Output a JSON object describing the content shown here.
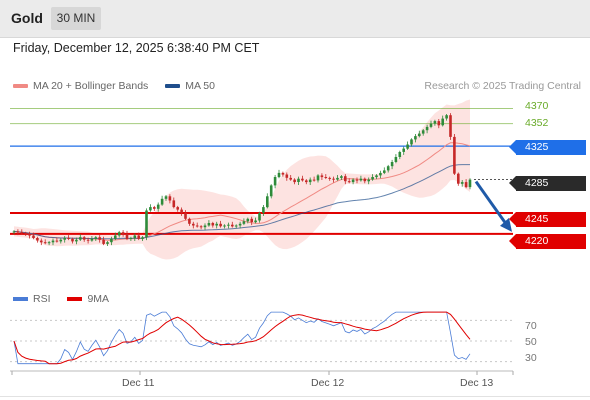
{
  "header": {
    "title": "Gold",
    "timeframe": "30 MIN",
    "datetime": "Friday, December 12, 2025 6:38:40 PM CET"
  },
  "legend": {
    "ma20_label": "MA 20 + Bollinger Bands",
    "ma50_label": "MA 50",
    "ma20_color": "#f08a84",
    "ma50_color": "#1f4e8c",
    "research": "Research © 2025 Trading Central"
  },
  "rsi_legend": {
    "rsi_label": "RSI",
    "ma_label": "9MA",
    "rsi_color": "#4a7cd6",
    "ma_color": "#e00000"
  },
  "levels": {
    "r2": "4370",
    "r1": "4352",
    "pivot": "4325",
    "current": "4285",
    "s1": "4245",
    "s2": "4220"
  },
  "colors": {
    "resistance": "#6aab2a",
    "pivot": "#1f6fe8",
    "current": "#2a2a2a",
    "support": "#e00000",
    "arrow": "#1f5aa8"
  },
  "rsi_ticks": [
    "70",
    "50",
    "30"
  ],
  "date_ticks": [
    "Dec 11",
    "Dec 12",
    "Dec 13"
  ],
  "chart_data": {
    "type": "candlestick",
    "y_range": [
      4160,
      4385
    ],
    "close": [
      4223,
      4222,
      4221,
      4220,
      4218,
      4215,
      4212,
      4210,
      4209,
      4210,
      4212,
      4211,
      4213,
      4215,
      4214,
      4211,
      4213,
      4216,
      4213,
      4212,
      4214,
      4216,
      4213,
      4208,
      4210,
      4214,
      4218,
      4222,
      4220,
      4214,
      4215,
      4218,
      4214,
      4216,
      4248,
      4252,
      4250,
      4255,
      4262,
      4265,
      4260,
      4252,
      4249,
      4245,
      4238,
      4232,
      4230,
      4229,
      4228,
      4230,
      4233,
      4230,
      4232,
      4229,
      4230,
      4231,
      4229,
      4230,
      4232,
      4235,
      4238,
      4234,
      4236,
      4245,
      4252,
      4265,
      4278,
      4288,
      4293,
      4291,
      4287,
      4285,
      4282,
      4286,
      4284,
      4282,
      4285,
      4284,
      4290,
      4288,
      4287,
      4286,
      4285,
      4287,
      4289,
      4283,
      4282,
      4285,
      4284,
      4286,
      4283,
      4285,
      4288,
      4290,
      4293,
      4296,
      4301,
      4306,
      4312,
      4318,
      4322,
      4327,
      4333,
      4337,
      4340,
      4344,
      4348,
      4352,
      4355,
      4350,
      4358,
      4362,
      4336,
      4292,
      4280,
      4282,
      4276,
      4285
    ]
  }
}
